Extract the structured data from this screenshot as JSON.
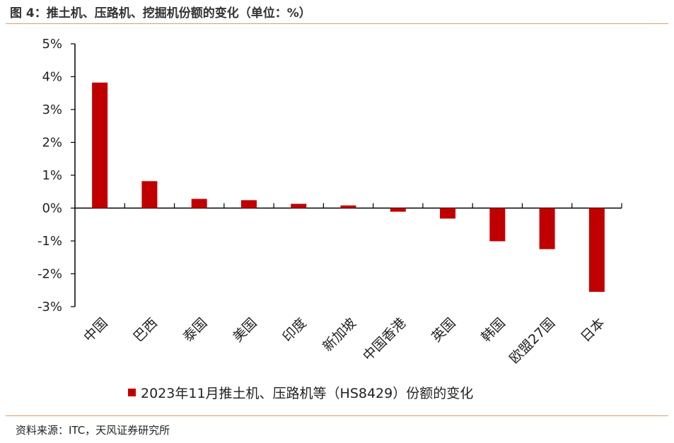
{
  "header": {
    "title": "图 4：推土机、压路机、挖掘机份额的变化（单位：%）"
  },
  "footer": {
    "source": "资料来源：ITC，天风证券研究所"
  },
  "colors": {
    "bar": "#c00000",
    "axis": "#000000",
    "rule": "#d9a06a"
  },
  "chart_data": {
    "type": "bar",
    "categories": [
      "中国",
      "巴西",
      "泰国",
      "美国",
      "印度",
      "新加坡",
      "中国香港",
      "英国",
      "韩国",
      "欧盟27国",
      "日本"
    ],
    "series": [
      {
        "name": "2023年11月推土机、压路机等（HS8429）份额的变化",
        "values": [
          3.82,
          0.82,
          0.28,
          0.24,
          0.13,
          0.08,
          -0.11,
          -0.32,
          -1.01,
          -1.25,
          -2.55
        ]
      }
    ],
    "y_ticks": [
      "-3%",
      "-2%",
      "-1%",
      "0%",
      "1%",
      "2%",
      "3%",
      "4%",
      "5%"
    ],
    "ylim": [
      -3,
      5
    ],
    "xlabel": "",
    "ylabel": "",
    "grid": false,
    "legend_position": "bottom"
  }
}
